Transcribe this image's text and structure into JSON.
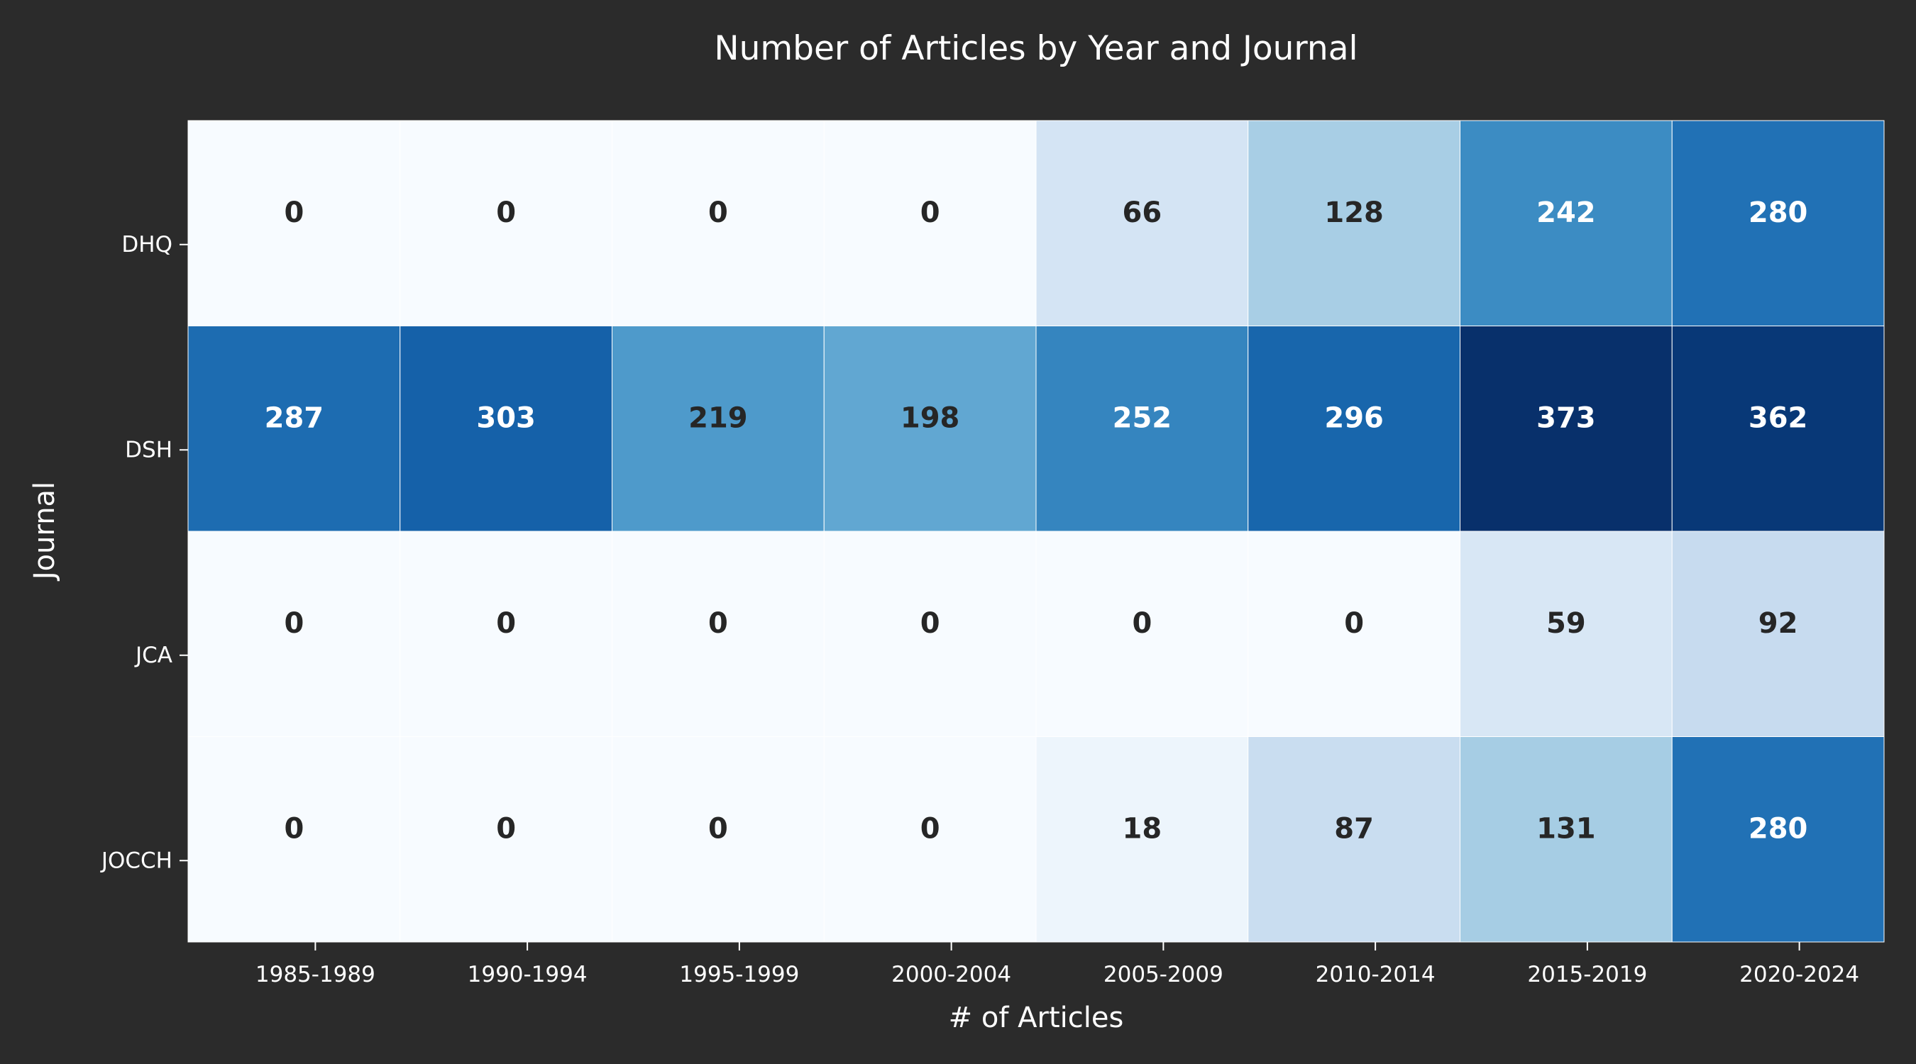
{
  "chart_data": {
    "type": "heatmap",
    "title": "Number of Articles by Year and Journal",
    "xlabel": "# of Articles",
    "ylabel": "Journal",
    "x_categories": [
      "1985-1989",
      "1990-1994",
      "1995-1999",
      "2000-2004",
      "2005-2009",
      "2010-2014",
      "2015-2019",
      "2020-2024"
    ],
    "y_categories": [
      "DHQ",
      "DSH",
      "JCA",
      "JOCCH"
    ],
    "values": [
      [
        0,
        0,
        0,
        0,
        66,
        128,
        242,
        280
      ],
      [
        287,
        303,
        219,
        198,
        252,
        296,
        373,
        362
      ],
      [
        0,
        0,
        0,
        0,
        0,
        0,
        59,
        92
      ],
      [
        0,
        0,
        0,
        0,
        18,
        87,
        131,
        280
      ]
    ],
    "colormap": "Blues",
    "value_range": [
      0,
      373
    ],
    "grid": false,
    "legend": "none",
    "colors": {
      "background": "#2b2b2b",
      "text": "#ffffff",
      "cell_border": "#ffffff",
      "dark_label": "#262626",
      "light_label": "#ffffff"
    }
  }
}
